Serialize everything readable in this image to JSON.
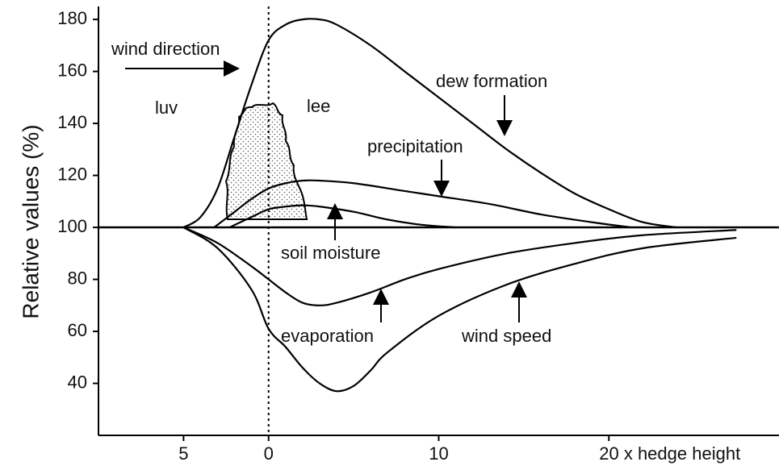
{
  "chart_data": {
    "type": "line",
    "ylabel": "Relative values (%)",
    "xlim": [
      -10,
      30
    ],
    "ylim": [
      20,
      185
    ],
    "xticks": [
      {
        "value": -5,
        "label": "5"
      },
      0,
      10,
      {
        "value": 20,
        "label": "20 x hedge height"
      }
    ],
    "yticks": [
      40,
      60,
      80,
      100,
      120,
      140,
      160,
      180
    ],
    "grid": false,
    "annotations": [
      "wind direction",
      "luv",
      "lee",
      "dew formation",
      "precipitation",
      "soil moisture",
      "evaporation",
      "wind speed"
    ],
    "series": [
      {
        "name": "dew formation",
        "color": "#000000",
        "x": [
          -5,
          -4,
          -3,
          -2,
          -1,
          0,
          1,
          2,
          3,
          4,
          6,
          8,
          10,
          12,
          14,
          16,
          18,
          20,
          22,
          24
        ],
        "values": [
          100,
          104,
          115,
          135,
          155,
          172,
          178,
          180,
          180,
          178,
          170,
          160,
          150,
          140,
          130,
          121,
          113,
          107,
          102,
          100
        ]
      },
      {
        "name": "precipitation",
        "color": "#000000",
        "x": [
          -3.2,
          -2,
          -1,
          0,
          1,
          2,
          3,
          5,
          8,
          10,
          13,
          16,
          19,
          21.3
        ],
        "values": [
          100,
          106,
          111,
          115,
          117,
          118,
          118,
          117,
          114,
          112,
          109,
          105,
          102,
          100
        ]
      },
      {
        "name": "soil moisture",
        "color": "#000000",
        "x": [
          -2.3,
          -1,
          0,
          1,
          2,
          3,
          5,
          7,
          9,
          11
        ],
        "values": [
          100,
          104,
          107,
          108,
          108.5,
          108,
          106,
          103,
          101,
          100
        ]
      },
      {
        "name": "evaporation",
        "color": "#000000",
        "x": [
          -5,
          -3,
          -1,
          0,
          1,
          2,
          3,
          4,
          6,
          8,
          10,
          14,
          18,
          22,
          27.5
        ],
        "values": [
          100,
          94,
          85,
          80,
          75,
          71,
          70,
          71,
          75,
          80,
          84,
          90,
          94,
          97,
          99
        ]
      },
      {
        "name": "wind speed",
        "color": "#000000",
        "x": [
          -5,
          -3,
          -1,
          0,
          1,
          2,
          3,
          4,
          5,
          6,
          7,
          10,
          14,
          18,
          22,
          27.5
        ],
        "values": [
          100,
          92,
          76,
          61,
          54,
          46,
          40,
          37,
          39,
          45,
          52,
          66,
          78,
          86,
          92,
          96
        ]
      }
    ]
  }
}
